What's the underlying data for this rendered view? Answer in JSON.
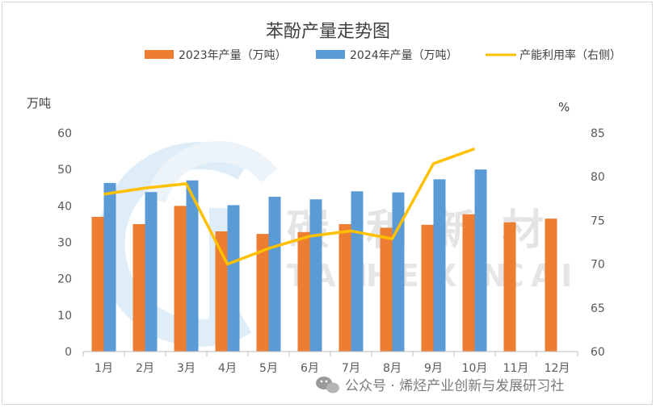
{
  "chart_data": {
    "type": "bar",
    "title": "苯酚产量走势图",
    "categories": [
      "1月",
      "2月",
      "3月",
      "4月",
      "5月",
      "6月",
      "7月",
      "8月",
      "9月",
      "10月",
      "11月",
      "12月"
    ],
    "series": [
      {
        "name": "2023年产量（万吨）",
        "kind": "bar",
        "axis": "left",
        "color": "#ed7d31",
        "values": [
          37,
          35,
          40,
          33,
          32.3,
          32.8,
          35,
          34,
          34.8,
          37.7,
          35.5,
          36.5
        ]
      },
      {
        "name": "2024年产量（万吨）",
        "kind": "bar",
        "axis": "left",
        "color": "#5b9bd5",
        "values": [
          46.3,
          43.8,
          47,
          40.2,
          42.5,
          41.8,
          44,
          43.7,
          47.3,
          50,
          null,
          null
        ]
      },
      {
        "name": "产能利用率（右侧）",
        "kind": "line",
        "axis": "right",
        "color": "#ffc000",
        "values": [
          78,
          78.7,
          79.2,
          70,
          71.8,
          73.2,
          73.8,
          72.9,
          81.5,
          83.2,
          null,
          null
        ]
      }
    ],
    "y_left": {
      "label": "万吨",
      "min": 0,
      "max": 60,
      "ticks": [
        0,
        10,
        20,
        30,
        40,
        50,
        60
      ]
    },
    "y_right": {
      "label": "%",
      "min": 60,
      "max": 85,
      "ticks": [
        60,
        65,
        70,
        75,
        80,
        85
      ]
    },
    "legend_position": "top",
    "grid": false
  },
  "watermark": {
    "chars": [
      "碳",
      "和",
      "新",
      "材"
    ],
    "sub": [
      "TAN",
      "HE",
      "XIN",
      "CAI"
    ]
  },
  "footer": {
    "source": "公众号 · 烯烃产业创新与发展研习社",
    "icon": "wechat-icon"
  }
}
